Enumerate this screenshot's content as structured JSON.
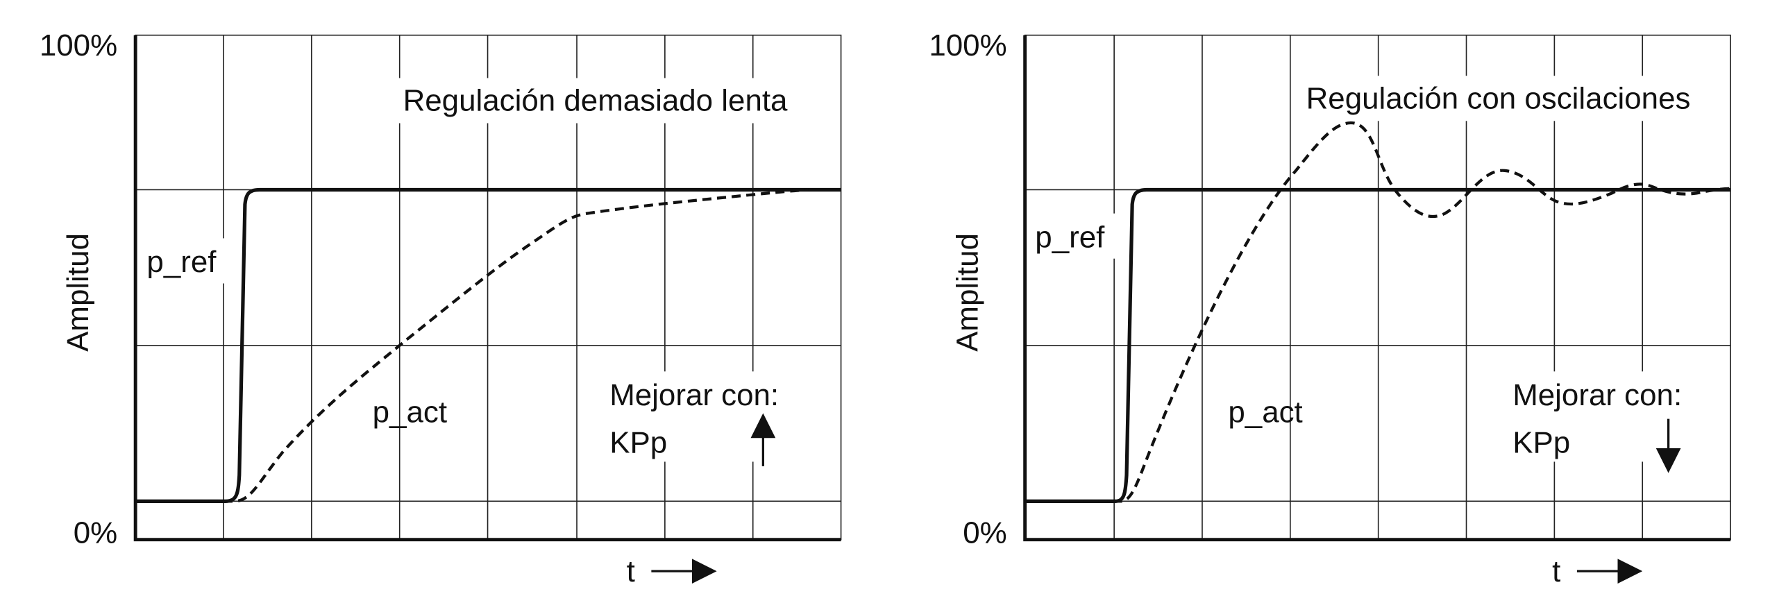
{
  "panels": [
    {
      "y_top": "100%",
      "y_bottom": "0%",
      "y_axis": "Amplitud",
      "x_axis": "t",
      "title": "Regulación demasiado lenta",
      "ref_label": "p_ref",
      "act_label": "p_act",
      "hint": "Mejorar con:",
      "param": "KPp"
    },
    {
      "y_top": "100%",
      "y_bottom": "0%",
      "y_axis": "Amplitud",
      "x_axis": "t",
      "title": "Regulación con oscilaciones",
      "ref_label": "p_ref",
      "act_label": "p_act",
      "hint": "Mejorar con:",
      "param": "KPp"
    }
  ]
}
